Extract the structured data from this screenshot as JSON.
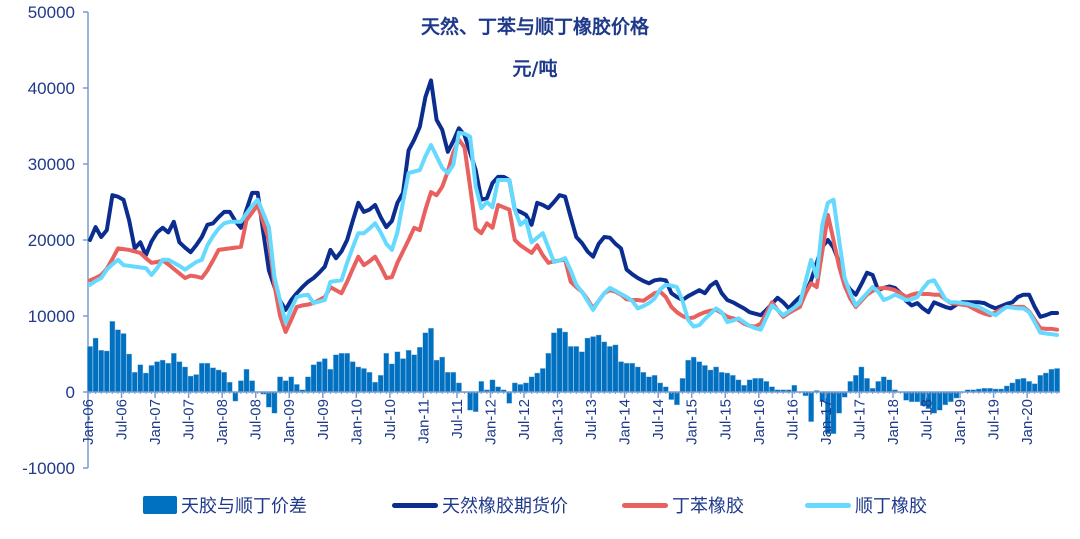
{
  "chart_data": {
    "type": "bar+line",
    "title": "天然、丁苯与顺丁橡胶价格",
    "subtitle": "元/吨",
    "xlabel": "",
    "ylabel": "",
    "ylim": [
      -10000,
      50000
    ],
    "yticks": [
      -10000,
      0,
      10000,
      20000,
      30000,
      40000,
      50000
    ],
    "ytick_labels": [
      "-10000",
      "0",
      "10000",
      "20000",
      "30000",
      "40000",
      "50000"
    ],
    "x_start": "Jan-06",
    "x_frequency": "monthly",
    "xtick_labels": [
      "Jan-06",
      "Jul-06",
      "Jan-07",
      "Jul-07",
      "Jan-08",
      "Jul-08",
      "Jan-09",
      "Jul-09",
      "Jan-10",
      "Jul-10",
      "Jan-11",
      "Jul-11",
      "Jan-12",
      "Jul-12",
      "Jan-13",
      "Jul-13",
      "Jan-14",
      "Jul-14",
      "Jan-15",
      "Jul-15",
      "Jan-16",
      "Jul-16",
      "Jan-17",
      "Jul-17",
      "Jan-18",
      "Jul-18",
      "Jan-19",
      "Jul-19",
      "Jan-20"
    ],
    "legend_position": "bottom",
    "grid": false,
    "colors": {
      "spread": "#0070C0",
      "natural": "#0B2D8F",
      "sbr": "#E8615F",
      "br": "#66D9FF",
      "text": "#1F3A8A",
      "axis": "#7C9CCF"
    },
    "series": [
      {
        "key": "spread",
        "name": "天胶与顺丁价差",
        "type": "bar",
        "values": [
          6000,
          7100,
          5500,
          5400,
          9300,
          8200,
          7700,
          5000,
          2600,
          3600,
          2500,
          3500,
          4000,
          4200,
          3800,
          5100,
          4000,
          3300,
          2100,
          2300,
          3800,
          3800,
          3200,
          2900,
          2600,
          1300,
          -1200,
          1500,
          3000,
          1500,
          0,
          -300,
          -2000,
          -2800,
          2000,
          1500,
          2000,
          1000,
          300,
          2000,
          3600,
          4000,
          4400,
          3000,
          4900,
          5100,
          5100,
          4000,
          3300,
          3100,
          2600,
          1300,
          2200,
          5100,
          3700,
          5300,
          4400,
          5500,
          4900,
          5900,
          7800,
          8400,
          4200,
          4600,
          2600,
          2600,
          1200,
          0,
          -2400,
          -2600,
          1400,
          300,
          1600,
          700,
          300,
          -1500,
          1200,
          1000,
          1200,
          2000,
          2500,
          3100,
          5100,
          7800,
          8400,
          7900,
          6000,
          6000,
          5300,
          7100,
          7300,
          7500,
          6600,
          6000,
          6200,
          4000,
          3800,
          3800,
          3300,
          2600,
          2000,
          2200,
          1200,
          700,
          -1000,
          -1700,
          1800,
          4200,
          4600,
          4000,
          3500,
          2900,
          3300,
          2600,
          2500,
          2200,
          1600,
          900,
          1600,
          1800,
          1800,
          1400,
          700,
          300,
          300,
          300,
          900,
          0,
          -500,
          -3900,
          200,
          -1300,
          -5500,
          -5500,
          -2800,
          -700,
          1400,
          2200,
          3300,
          1800,
          500,
          1400,
          2000,
          1600,
          300,
          0,
          -1100,
          -1300,
          -1300,
          -1800,
          -2200,
          -2800,
          -2400,
          -1700,
          -1300,
          -800,
          0,
          300,
          300,
          400,
          500,
          500,
          400,
          400,
          800,
          1200,
          1700,
          1800,
          1400,
          1100,
          2200,
          2500,
          3000,
          3100
        ]
      },
      {
        "key": "natural",
        "name": "天然橡胶期货价",
        "type": "line",
        "values": [
          20000,
          21700,
          20400,
          21300,
          25900,
          25700,
          25300,
          22600,
          18900,
          19700,
          18000,
          19800,
          21000,
          21600,
          21000,
          22400,
          19700,
          19000,
          18400,
          19300,
          20400,
          22000,
          22200,
          23000,
          23700,
          23700,
          22500,
          21600,
          24000,
          26200,
          26200,
          21000,
          16000,
          13800,
          12000,
          10800,
          12100,
          13000,
          13800,
          14500,
          15000,
          15700,
          16500,
          18700,
          17600,
          18500,
          20000,
          22500,
          24900,
          23700,
          24000,
          24600,
          23000,
          21700,
          22500,
          24900,
          26200,
          31800,
          33200,
          34900,
          38800,
          41000,
          35800,
          34500,
          31600,
          33000,
          34700,
          33800,
          31500,
          29200,
          25300,
          25500,
          27500,
          28300,
          28300,
          27900,
          24000,
          23700,
          23300,
          22000,
          24900,
          24600,
          24200,
          25000,
          25900,
          25700,
          23000,
          20400,
          19600,
          18500,
          17800,
          19500,
          20400,
          20300,
          19500,
          18900,
          16100,
          15500,
          15000,
          14600,
          14300,
          14700,
          14800,
          14700,
          13000,
          12500,
          12100,
          12600,
          13000,
          13400,
          13000,
          14000,
          14500,
          13000,
          12100,
          11800,
          11400,
          11000,
          10500,
          10300,
          10100,
          10800,
          11600,
          12400,
          11800,
          11000,
          11800,
          12500,
          13000,
          14700,
          17000,
          19100,
          20000,
          19000,
          17100,
          14500,
          13500,
          12800,
          14200,
          15700,
          15400,
          13400,
          13700,
          13900,
          13700,
          13000,
          12000,
          11400,
          11700,
          11000,
          10500,
          11800,
          11500,
          11200,
          11000,
          11500,
          11800,
          11800,
          11800,
          11800,
          11700,
          11300,
          11000,
          11300,
          11600,
          11800,
          12500,
          12800,
          12800,
          11200,
          9900,
          10100,
          10400,
          10400
        ]
      },
      {
        "key": "sbr",
        "name": "丁苯橡胶",
        "type": "line",
        "values": [
          14700,
          15000,
          15400,
          16200,
          17500,
          18900,
          18800,
          18700,
          18500,
          18300,
          17600,
          17000,
          17100,
          17300,
          16800,
          16200,
          15600,
          15000,
          15300,
          15200,
          15000,
          16000,
          17300,
          18700,
          18800,
          18900,
          19000,
          19100,
          22600,
          23600,
          24600,
          22300,
          20000,
          14000,
          10000,
          7900,
          9500,
          11200,
          11400,
          11500,
          11700,
          12100,
          12500,
          13800,
          13400,
          13000,
          14500,
          16200,
          17800,
          16700,
          17200,
          17800,
          16500,
          15000,
          15100,
          17000,
          18500,
          20000,
          21600,
          21300,
          24000,
          26300,
          25900,
          27000,
          29000,
          31500,
          33200,
          32200,
          27000,
          21500,
          20900,
          22200,
          21600,
          24600,
          24300,
          24000,
          20000,
          19300,
          18800,
          18300,
          19300,
          18000,
          17000,
          17200,
          17300,
          17400,
          14500,
          13800,
          13200,
          12200,
          11000,
          12000,
          13000,
          13400,
          13200,
          12800,
          12200,
          12100,
          12100,
          12000,
          12500,
          13000,
          13200,
          12500,
          11200,
          10500,
          10000,
          9700,
          9800,
          10200,
          10500,
          10700,
          10800,
          10400,
          9900,
          9700,
          9500,
          9000,
          8700,
          8600,
          9000,
          10400,
          11800,
          10800,
          9900,
          10400,
          10800,
          11200,
          13000,
          14300,
          13800,
          18500,
          23300,
          20000,
          16500,
          14000,
          12300,
          11200,
          12000,
          12800,
          13300,
          13600,
          13700,
          13600,
          13400,
          13000,
          12500,
          12800,
          13000,
          12900,
          12900,
          12800,
          12800,
          12200,
          11700,
          11600,
          11500,
          11400,
          11000,
          10600,
          10300,
          10100,
          10500,
          10900,
          11200,
          11200,
          11200,
          11200,
          10600,
          9500,
          8400,
          8300,
          8300,
          8200
        ]
      },
      {
        "key": "br",
        "name": "顺丁橡胶",
        "type": "line",
        "values": [
          14100,
          14600,
          15000,
          16100,
          16800,
          17400,
          16700,
          16600,
          16500,
          16400,
          16300,
          15400,
          16300,
          17400,
          17400,
          17000,
          16600,
          16100,
          16600,
          17100,
          17400,
          19300,
          20500,
          21500,
          22200,
          22400,
          22400,
          22400,
          23500,
          24500,
          25300,
          23500,
          21700,
          15100,
          12000,
          9100,
          11000,
          12500,
          12700,
          12800,
          11700,
          11900,
          12100,
          14500,
          14600,
          14700,
          17000,
          19000,
          20900,
          20900,
          21500,
          22200,
          21000,
          19500,
          18700,
          21000,
          25000,
          28800,
          29000,
          29200,
          31000,
          32500,
          31000,
          29500,
          28800,
          29900,
          34100,
          34000,
          33600,
          27000,
          24200,
          25000,
          24300,
          27900,
          27900,
          27900,
          24000,
          22000,
          22600,
          19700,
          20300,
          20900,
          19000,
          17100,
          17300,
          17600,
          16000,
          14100,
          13200,
          12000,
          10800,
          12000,
          13000,
          13700,
          13300,
          12900,
          12500,
          12000,
          11000,
          11300,
          11700,
          12300,
          13500,
          14100,
          14000,
          13800,
          12000,
          9500,
          8600,
          8800,
          9600,
          10300,
          11000,
          10500,
          9200,
          9400,
          9700,
          9200,
          8700,
          8400,
          8200,
          9800,
          11400,
          10800,
          10100,
          10600,
          11100,
          11700,
          14500,
          17400,
          15100,
          22000,
          24900,
          25300,
          20000,
          15000,
          13000,
          11400,
          12200,
          13000,
          13800,
          13200,
          12100,
          12400,
          12800,
          12500,
          12100,
          12200,
          12500,
          13600,
          14500,
          14700,
          13500,
          12200,
          11800,
          11800,
          11700,
          11600,
          11400,
          11200,
          10800,
          10400,
          10100,
          10700,
          11200,
          11100,
          11000,
          11000,
          10500,
          9200,
          7800,
          7700,
          7600,
          7500
        ]
      }
    ]
  }
}
